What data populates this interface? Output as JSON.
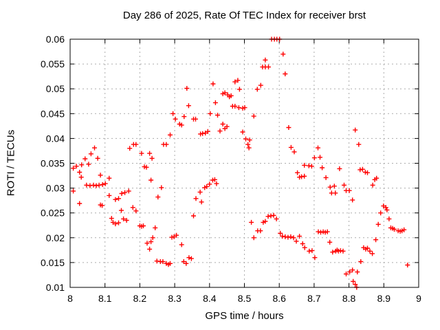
{
  "chart_data": {
    "type": "scatter",
    "title": "Day 286 of 2025, Rate Of TEC Index for receiver brst",
    "xlabel": "GPS time / hours",
    "ylabel": "ROTI / TECUs",
    "xlim": [
      8,
      9
    ],
    "ylim": [
      0.01,
      0.06
    ],
    "grid": true,
    "legend": "none",
    "xticks": [
      8,
      8.1,
      8.2,
      8.3,
      8.4,
      8.5,
      8.6,
      8.7,
      8.8,
      8.9,
      9
    ],
    "xtick_labels": [
      "8",
      "8.1",
      "8.2",
      "8.3",
      "8.4",
      "8.5",
      "8.6",
      "8.7",
      "8.8",
      "8.9",
      "9"
    ],
    "yticks": [
      0.01,
      0.015,
      0.02,
      0.025,
      0.03,
      0.035,
      0.04,
      0.045,
      0.05,
      0.055,
      0.06
    ],
    "ytick_labels": [
      "0.01",
      "0.015",
      "0.02",
      "0.025",
      "0.03",
      "0.035",
      "0.04",
      "0.045",
      "0.05",
      "0.055",
      "0.06"
    ],
    "colors": {
      "marker": "#ff0000",
      "grid": "#ababab",
      "axis": "#000000",
      "text": "#000000",
      "background": "#ffffff"
    },
    "marker_shape": "plus",
    "series": [
      {
        "name": "ROTI",
        "points": [
          [
            8.009,
            0.034
          ],
          [
            8.009,
            0.0294
          ],
          [
            8.018,
            0.0344
          ],
          [
            8.027,
            0.0332
          ],
          [
            8.027,
            0.0269
          ],
          [
            8.032,
            0.0322
          ],
          [
            8.033,
            0.0347
          ],
          [
            8.043,
            0.0359
          ],
          [
            8.047,
            0.0306
          ],
          [
            8.053,
            0.0348
          ],
          [
            8.057,
            0.0305
          ],
          [
            8.06,
            0.0369
          ],
          [
            8.067,
            0.0306
          ],
          [
            8.07,
            0.0381
          ],
          [
            8.075,
            0.0305
          ],
          [
            8.079,
            0.036
          ],
          [
            8.083,
            0.0306
          ],
          [
            8.087,
            0.0326
          ],
          [
            8.087,
            0.0266
          ],
          [
            8.092,
            0.0265
          ],
          [
            8.093,
            0.0307
          ],
          [
            8.101,
            0.0309
          ],
          [
            8.112,
            0.032
          ],
          [
            8.112,
            0.0285
          ],
          [
            8.119,
            0.0239
          ],
          [
            8.123,
            0.0231
          ],
          [
            8.13,
            0.0277
          ],
          [
            8.13,
            0.0228
          ],
          [
            8.139,
            0.0279
          ],
          [
            8.139,
            0.023
          ],
          [
            8.147,
            0.0255
          ],
          [
            8.148,
            0.0289
          ],
          [
            8.153,
            0.0238
          ],
          [
            8.157,
            0.0291
          ],
          [
            8.162,
            0.0235
          ],
          [
            8.168,
            0.0294
          ],
          [
            8.171,
            0.038
          ],
          [
            8.18,
            0.0261
          ],
          [
            8.182,
            0.0388
          ],
          [
            8.189,
            0.0388
          ],
          [
            8.189,
            0.0254
          ],
          [
            8.2,
            0.0224
          ],
          [
            8.205,
            0.037
          ],
          [
            8.205,
            0.0223
          ],
          [
            8.21,
            0.0224
          ],
          [
            8.213,
            0.0343
          ],
          [
            8.219,
            0.0342
          ],
          [
            8.221,
            0.0189
          ],
          [
            8.228,
            0.037
          ],
          [
            8.228,
            0.0177
          ],
          [
            8.232,
            0.0316
          ],
          [
            8.232,
            0.0192
          ],
          [
            8.235,
            0.036
          ],
          [
            8.237,
            0.02
          ],
          [
            8.244,
            0.022
          ],
          [
            8.249,
            0.0153
          ],
          [
            8.252,
            0.0282
          ],
          [
            8.259,
            0.0152
          ],
          [
            8.262,
            0.0301
          ],
          [
            8.266,
            0.0152
          ],
          [
            8.268,
            0.0388
          ],
          [
            8.276,
            0.0388
          ],
          [
            8.276,
            0.0148
          ],
          [
            8.282,
            0.0146
          ],
          [
            8.287,
            0.0407
          ],
          [
            8.287,
            0.0148
          ],
          [
            8.292,
            0.0201
          ],
          [
            8.295,
            0.045
          ],
          [
            8.298,
            0.0202
          ],
          [
            8.302,
            0.0439
          ],
          [
            8.305,
            0.0205
          ],
          [
            8.314,
            0.0429
          ],
          [
            8.32,
            0.0427
          ],
          [
            8.32,
            0.0186
          ],
          [
            8.326,
            0.0152
          ],
          [
            8.327,
            0.0444
          ],
          [
            8.333,
            0.0148
          ],
          [
            8.335,
            0.0501
          ],
          [
            8.34,
            0.0466
          ],
          [
            8.341,
            0.016
          ],
          [
            8.348,
            0.0158
          ],
          [
            8.354,
            0.0439
          ],
          [
            8.354,
            0.0244
          ],
          [
            8.36,
            0.0439
          ],
          [
            8.361,
            0.0279
          ],
          [
            8.373,
            0.0292
          ],
          [
            8.374,
            0.0409
          ],
          [
            8.377,
            0.0272
          ],
          [
            8.38,
            0.041
          ],
          [
            8.386,
            0.0301
          ],
          [
            8.388,
            0.0411
          ],
          [
            8.392,
            0.0303
          ],
          [
            8.395,
            0.0414
          ],
          [
            8.4,
            0.0308
          ],
          [
            8.402,
            0.045
          ],
          [
            8.409,
            0.0316
          ],
          [
            8.41,
            0.051
          ],
          [
            8.415,
            0.0317
          ],
          [
            8.417,
            0.0472
          ],
          [
            8.42,
            0.0309
          ],
          [
            8.423,
            0.0447
          ],
          [
            8.43,
            0.0415
          ],
          [
            8.438,
            0.049
          ],
          [
            8.438,
            0.0429
          ],
          [
            8.444,
            0.0492
          ],
          [
            8.444,
            0.042
          ],
          [
            8.45,
            0.0424
          ],
          [
            8.452,
            0.0488
          ],
          [
            8.457,
            0.0484
          ],
          [
            8.462,
            0.0486
          ],
          [
            8.466,
            0.0465
          ],
          [
            8.473,
            0.0514
          ],
          [
            8.473,
            0.0465
          ],
          [
            8.481,
            0.0517
          ],
          [
            8.484,
            0.0462
          ],
          [
            8.486,
            0.0499
          ],
          [
            8.495,
            0.0461
          ],
          [
            8.495,
            0.0413
          ],
          [
            8.501,
            0.0462
          ],
          [
            8.504,
            0.0399
          ],
          [
            8.51,
            0.0388
          ],
          [
            8.513,
            0.0381
          ],
          [
            8.515,
            0.0397
          ],
          [
            8.52,
            0.0231
          ],
          [
            8.527,
            0.0445
          ],
          [
            8.527,
            0.02
          ],
          [
            8.537,
            0.0499
          ],
          [
            8.538,
            0.0214
          ],
          [
            8.546,
            0.0214
          ],
          [
            8.547,
            0.0507
          ],
          [
            8.552,
            0.0544
          ],
          [
            8.554,
            0.0231
          ],
          [
            8.56,
            0.0558
          ],
          [
            8.56,
            0.0544
          ],
          [
            8.56,
            0.0233
          ],
          [
            8.568,
            0.0243
          ],
          [
            8.569,
            0.0544
          ],
          [
            8.576,
            0.0244
          ],
          [
            8.578,
            0.06
          ],
          [
            8.584,
            0.0245
          ],
          [
            8.586,
            0.06
          ],
          [
            8.592,
            0.0238
          ],
          [
            8.593,
            0.06
          ],
          [
            8.601,
            0.06
          ],
          [
            8.603,
            0.0209
          ],
          [
            8.609,
            0.0203
          ],
          [
            8.611,
            0.057
          ],
          [
            8.617,
            0.053
          ],
          [
            8.617,
            0.0202
          ],
          [
            8.625,
            0.0201
          ],
          [
            8.627,
            0.0422
          ],
          [
            8.633,
            0.0202
          ],
          [
            8.634,
            0.0382
          ],
          [
            8.641,
            0.02
          ],
          [
            8.643,
            0.0373
          ],
          [
            8.649,
            0.0193
          ],
          [
            8.652,
            0.0331
          ],
          [
            8.658,
            0.0322
          ],
          [
            8.658,
            0.0203
          ],
          [
            8.664,
            0.0323
          ],
          [
            8.667,
            0.0188
          ],
          [
            8.672,
            0.0346
          ],
          [
            8.672,
            0.0324
          ],
          [
            8.673,
            0.018
          ],
          [
            8.685,
            0.0345
          ],
          [
            8.686,
            0.0173
          ],
          [
            8.693,
            0.0344
          ],
          [
            8.694,
            0.0174
          ],
          [
            8.701,
            0.0361
          ],
          [
            8.702,
            0.016
          ],
          [
            8.711,
            0.0381
          ],
          [
            8.712,
            0.0212
          ],
          [
            8.717,
            0.0362
          ],
          [
            8.719,
            0.0211
          ],
          [
            8.723,
            0.0341
          ],
          [
            8.726,
            0.0212
          ],
          [
            8.732,
            0.0211
          ],
          [
            8.734,
            0.0321
          ],
          [
            8.738,
            0.0212
          ],
          [
            8.745,
            0.0191
          ],
          [
            8.746,
            0.0302
          ],
          [
            8.75,
            0.029
          ],
          [
            8.753,
            0.0171
          ],
          [
            8.758,
            0.0304
          ],
          [
            8.761,
            0.029
          ],
          [
            8.762,
            0.0173
          ],
          [
            8.766,
            0.0175
          ],
          [
            8.77,
            0.0173
          ],
          [
            8.773,
            0.0339
          ],
          [
            8.776,
            0.0174
          ],
          [
            8.783,
            0.0173
          ],
          [
            8.786,
            0.0306
          ],
          [
            8.792,
            0.0295
          ],
          [
            8.792,
            0.0127
          ],
          [
            8.801,
            0.0295
          ],
          [
            8.802,
            0.0131
          ],
          [
            8.81,
            0.0276
          ],
          [
            8.81,
            0.0135
          ],
          [
            8.812,
            0.0112
          ],
          [
            8.818,
            0.0417
          ],
          [
            8.818,
            0.0106
          ],
          [
            8.822,
            0.01
          ],
          [
            8.824,
            0.0131
          ],
          [
            8.828,
            0.0388
          ],
          [
            8.832,
            0.0337
          ],
          [
            8.834,
            0.0152
          ],
          [
            8.839,
            0.0338
          ],
          [
            8.842,
            0.018
          ],
          [
            8.847,
            0.0332
          ],
          [
            8.848,
            0.0177
          ],
          [
            8.853,
            0.0331
          ],
          [
            8.853,
            0.0179
          ],
          [
            8.86,
            0.0173
          ],
          [
            8.867,
            0.0168
          ],
          [
            8.868,
            0.0306
          ],
          [
            8.874,
            0.0317
          ],
          [
            8.877,
            0.0196
          ],
          [
            8.879,
            0.032
          ],
          [
            8.884,
            0.0227
          ],
          [
            8.891,
            0.025
          ],
          [
            8.899,
            0.0264
          ],
          [
            8.906,
            0.0261
          ],
          [
            8.909,
            0.0256
          ],
          [
            8.915,
            0.0238
          ],
          [
            8.92,
            0.022
          ],
          [
            8.925,
            0.0219
          ],
          [
            8.93,
            0.0217
          ],
          [
            8.941,
            0.0214
          ],
          [
            8.947,
            0.0213
          ],
          [
            8.952,
            0.0214
          ],
          [
            8.958,
            0.0216
          ],
          [
            8.968,
            0.0145
          ]
        ]
      }
    ]
  }
}
